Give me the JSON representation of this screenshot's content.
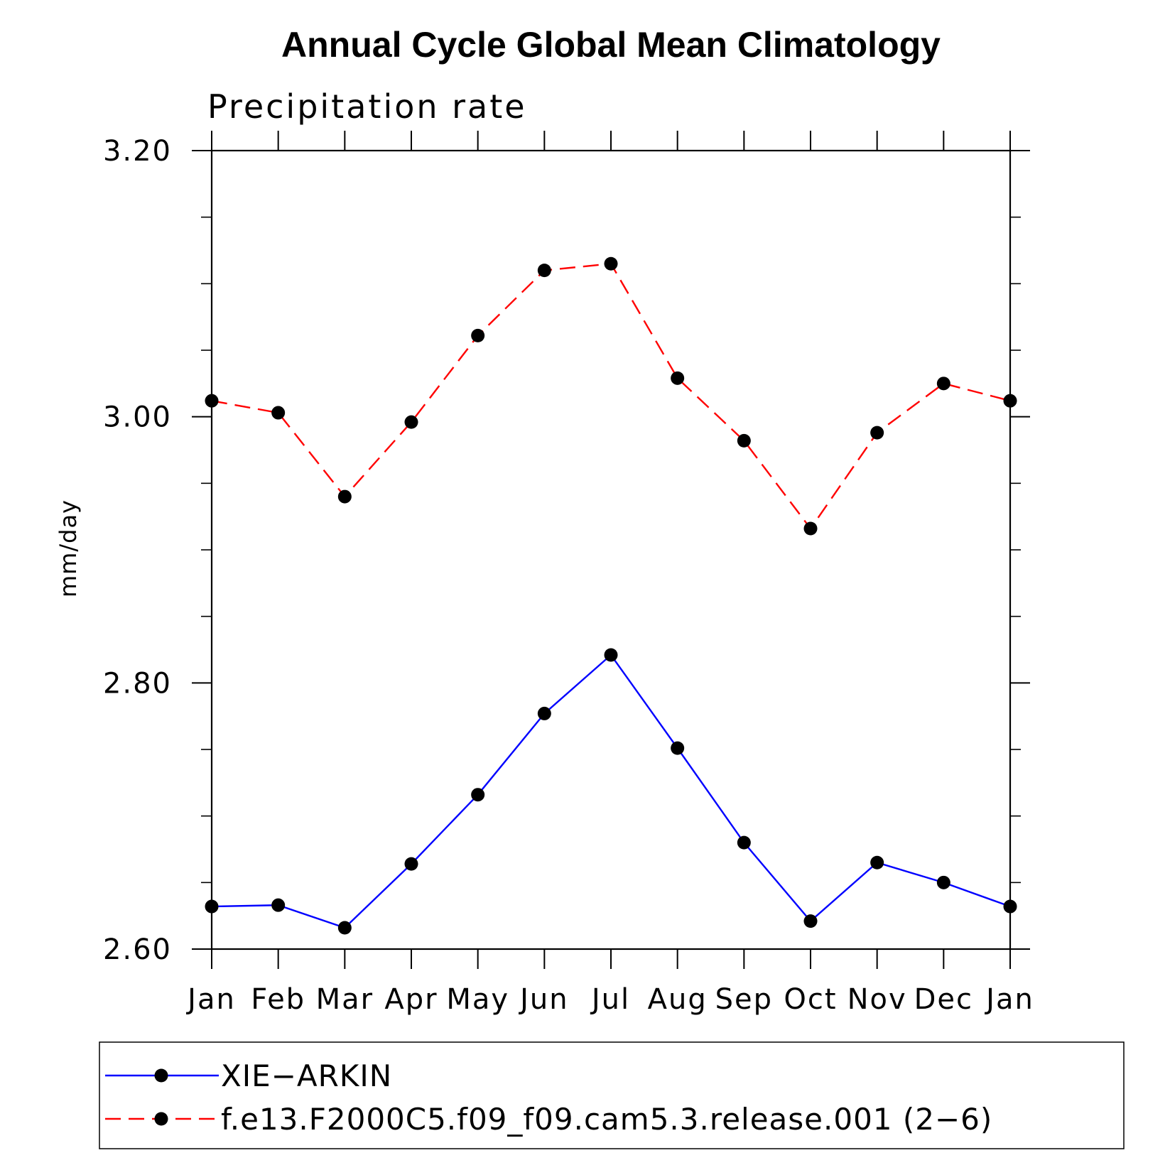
{
  "chart_data": {
    "type": "line",
    "title": "Annual Cycle Global Mean Climatology",
    "subtitle": "Precipitation rate",
    "xlabel": "",
    "ylabel": "mm/day",
    "categories": [
      "Jan",
      "Feb",
      "Mar",
      "Apr",
      "May",
      "Jun",
      "Jul",
      "Aug",
      "Sep",
      "Oct",
      "Nov",
      "Dec",
      "Jan"
    ],
    "ylim": [
      2.6,
      3.2
    ],
    "yticks_major": [
      2.6,
      2.8,
      3.0,
      3.2
    ],
    "yticks_major_labels": [
      "2.60",
      "2.80",
      "3.00",
      "3.20"
    ],
    "yticks_minor": [
      2.65,
      2.7,
      2.75,
      2.85,
      2.9,
      2.95,
      3.05,
      3.1,
      3.15
    ],
    "grid": false,
    "legend_position": "bottom",
    "series": [
      {
        "name": "XIE−ARKIN",
        "color": "#0000ff",
        "line_style": "solid",
        "marker": "filled-circle",
        "values": [
          2.632,
          2.633,
          2.616,
          2.664,
          2.716,
          2.777,
          2.821,
          2.751,
          2.68,
          2.621,
          2.665,
          2.65,
          2.632
        ]
      },
      {
        "name": "f.e13.F2000C5.f09_f09.cam5.3.release.001 (2−6)",
        "color": "#ff0000",
        "line_style": "dashed",
        "marker": "filled-circle",
        "values": [
          3.012,
          3.003,
          2.94,
          2.996,
          3.061,
          3.11,
          3.115,
          3.029,
          2.982,
          2.916,
          2.988,
          3.025,
          3.012
        ]
      }
    ]
  }
}
